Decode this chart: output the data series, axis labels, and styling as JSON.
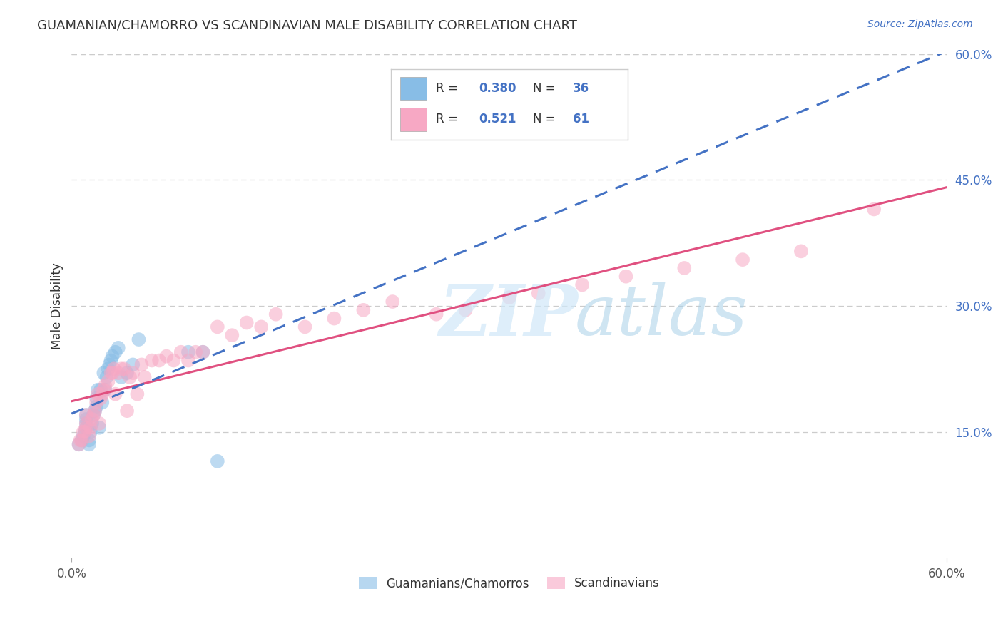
{
  "title": "GUAMANIAN/CHAMORRO VS SCANDINAVIAN MALE DISABILITY CORRELATION CHART",
  "source": "Source: ZipAtlas.com",
  "ylabel": "Male Disability",
  "xlim": [
    0.0,
    0.6
  ],
  "ylim": [
    0.0,
    0.6
  ],
  "ytick_labels_right": [
    "60.0%",
    "45.0%",
    "30.0%",
    "15.0%"
  ],
  "ytick_positions_right": [
    0.6,
    0.45,
    0.3,
    0.15
  ],
  "grid_color": "#cccccc",
  "background_color": "#ffffff",
  "blue_color": "#88bde6",
  "pink_color": "#f7a8c4",
  "blue_line_color": "#4472c4",
  "pink_line_color": "#e05080",
  "guamanian_x": [
    0.005,
    0.007,
    0.008,
    0.009,
    0.01,
    0.01,
    0.01,
    0.01,
    0.012,
    0.012,
    0.013,
    0.014,
    0.015,
    0.016,
    0.017,
    0.017,
    0.018,
    0.019,
    0.02,
    0.021,
    0.022,
    0.023,
    0.024,
    0.025,
    0.026,
    0.027,
    0.028,
    0.03,
    0.032,
    0.034,
    0.038,
    0.042,
    0.046,
    0.08,
    0.09,
    0.1
  ],
  "guamanian_y": [
    0.135,
    0.14,
    0.145,
    0.15,
    0.155,
    0.16,
    0.165,
    0.17,
    0.135,
    0.14,
    0.15,
    0.16,
    0.17,
    0.175,
    0.18,
    0.19,
    0.2,
    0.155,
    0.2,
    0.185,
    0.22,
    0.2,
    0.215,
    0.225,
    0.23,
    0.235,
    0.24,
    0.245,
    0.25,
    0.215,
    0.22,
    0.23,
    0.26,
    0.245,
    0.245,
    0.115
  ],
  "scandinavian_x": [
    0.005,
    0.006,
    0.007,
    0.008,
    0.009,
    0.01,
    0.01,
    0.01,
    0.012,
    0.013,
    0.014,
    0.015,
    0.016,
    0.017,
    0.018,
    0.019,
    0.02,
    0.021,
    0.022,
    0.023,
    0.025,
    0.027,
    0.028,
    0.029,
    0.03,
    0.032,
    0.034,
    0.036,
    0.038,
    0.04,
    0.042,
    0.045,
    0.048,
    0.05,
    0.055,
    0.06,
    0.065,
    0.07,
    0.075,
    0.08,
    0.085,
    0.09,
    0.1,
    0.11,
    0.12,
    0.13,
    0.14,
    0.16,
    0.18,
    0.2,
    0.22,
    0.25,
    0.27,
    0.3,
    0.32,
    0.35,
    0.38,
    0.42,
    0.46,
    0.5,
    0.55
  ],
  "scandinavian_y": [
    0.135,
    0.14,
    0.14,
    0.15,
    0.15,
    0.155,
    0.16,
    0.17,
    0.145,
    0.155,
    0.165,
    0.17,
    0.175,
    0.185,
    0.195,
    0.16,
    0.19,
    0.195,
    0.2,
    0.205,
    0.21,
    0.22,
    0.22,
    0.225,
    0.195,
    0.22,
    0.225,
    0.225,
    0.175,
    0.215,
    0.22,
    0.195,
    0.23,
    0.215,
    0.235,
    0.235,
    0.24,
    0.235,
    0.245,
    0.235,
    0.245,
    0.245,
    0.275,
    0.265,
    0.28,
    0.275,
    0.29,
    0.275,
    0.285,
    0.295,
    0.305,
    0.29,
    0.295,
    0.31,
    0.315,
    0.325,
    0.335,
    0.345,
    0.355,
    0.365,
    0.415
  ],
  "legend_items": [
    {
      "color": "#88bde6",
      "r": "0.380",
      "n": "36"
    },
    {
      "color": "#f7a8c4",
      "r": "0.521",
      "n": "61"
    }
  ]
}
